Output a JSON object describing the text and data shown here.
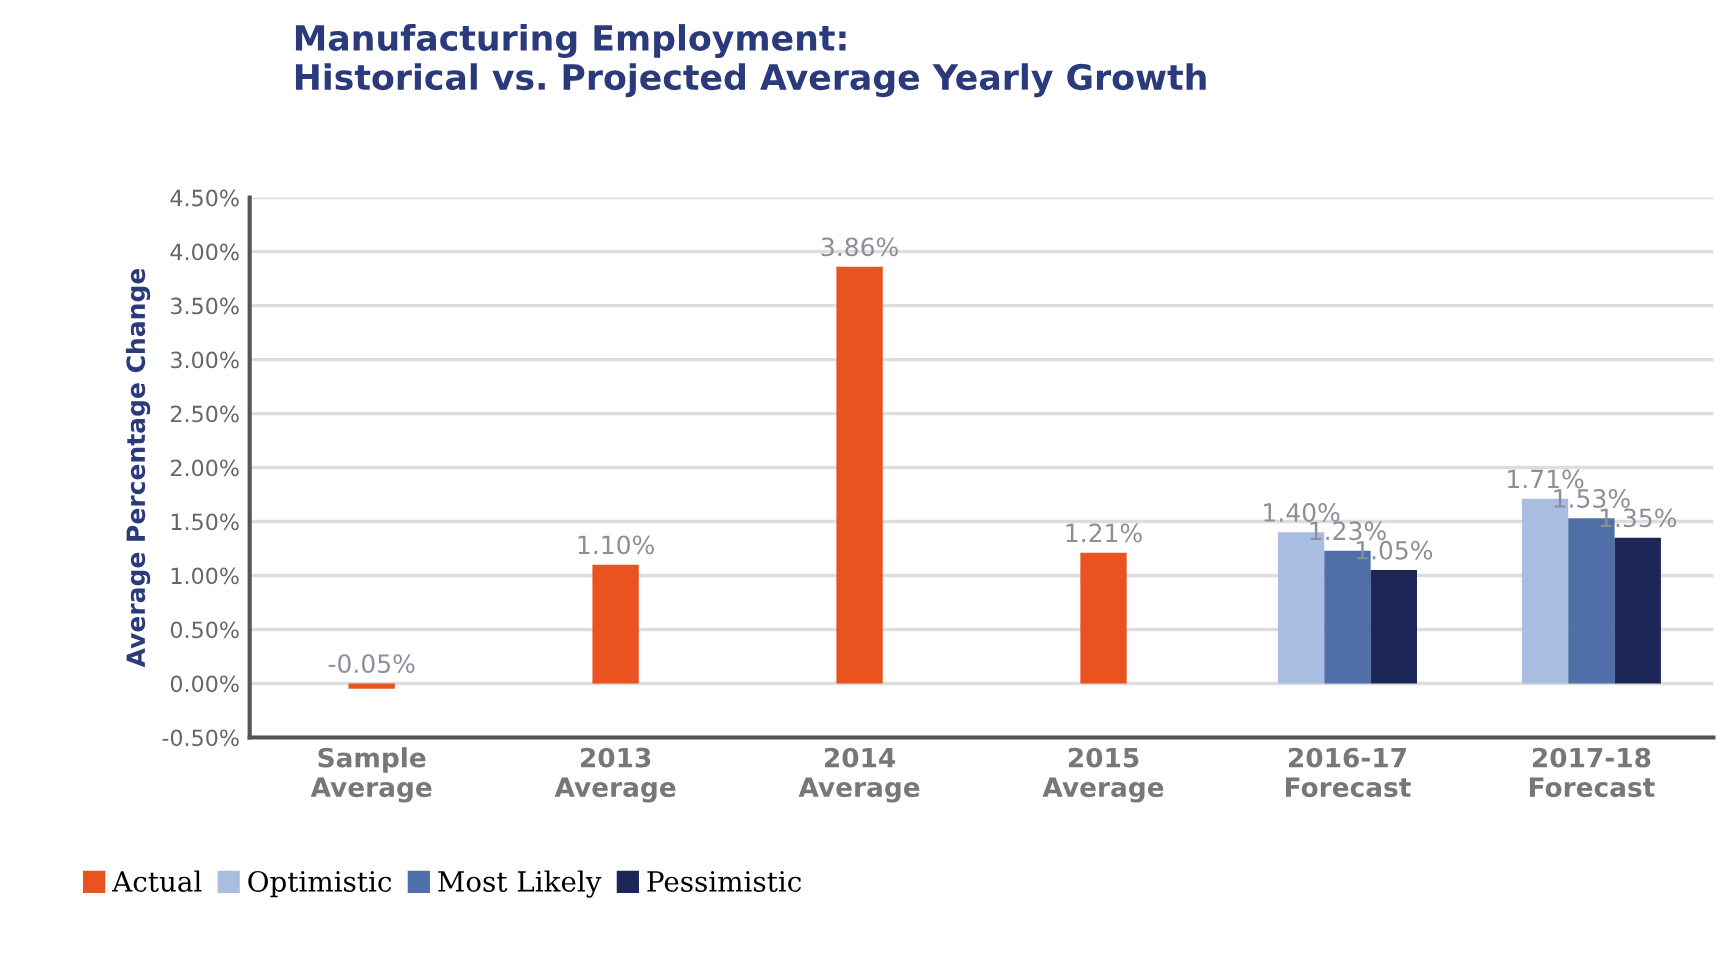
{
  "chart_data": {
    "type": "bar",
    "title": "Manufacturing Employment:\nHistorical vs. Projected Average Yearly Growth",
    "ylabel": "Average Percentage Change",
    "categories": [
      "Sample\nAverage",
      "2013\nAverage",
      "2014\nAverage",
      "2015\nAverage",
      "2016-17\nForecast",
      "2017-18\nForecast"
    ],
    "series": [
      {
        "name": "Actual",
        "color": "#e8531f",
        "values": [
          -0.05,
          1.1,
          3.86,
          1.21,
          null,
          null
        ],
        "value_labels": [
          "-0.05%",
          "1.10%",
          "3.86%",
          "1.21%",
          null,
          null
        ]
      },
      {
        "name": "Optimistic",
        "color": "#a9bde0",
        "values": [
          null,
          null,
          null,
          null,
          1.4,
          1.71
        ],
        "value_labels": [
          null,
          null,
          null,
          null,
          "1.40%",
          "1.71%"
        ]
      },
      {
        "name": "Most Likely",
        "color": "#4f6fa8",
        "values": [
          null,
          null,
          null,
          null,
          1.23,
          1.53
        ],
        "value_labels": [
          null,
          null,
          null,
          null,
          "1.23%",
          "1.53%"
        ]
      },
      {
        "name": "Pessimistic",
        "color": "#1c2657",
        "values": [
          null,
          null,
          null,
          null,
          1.05,
          1.35
        ],
        "value_labels": [
          null,
          null,
          null,
          null,
          "1.05%",
          "1.35%"
        ]
      }
    ],
    "ylim": [
      -0.5,
      4.5
    ],
    "yticks": [
      {
        "value": -0.5,
        "label": "-0.50%"
      },
      {
        "value": 0,
        "label": "0.00%"
      },
      {
        "value": 0.5,
        "label": "0.50%"
      },
      {
        "value": 1,
        "label": "1.00%"
      },
      {
        "value": 1.5,
        "label": "1.50%"
      },
      {
        "value": 2,
        "label": "2.00%"
      },
      {
        "value": 2.5,
        "label": "2.50%"
      },
      {
        "value": 3,
        "label": "3.00%"
      },
      {
        "value": 3.5,
        "label": "3.50%"
      },
      {
        "value": 4,
        "label": "4.00%"
      },
      {
        "value": 4.5,
        "label": "4.50%"
      }
    ],
    "grid": "y",
    "legend": "bottom"
  }
}
